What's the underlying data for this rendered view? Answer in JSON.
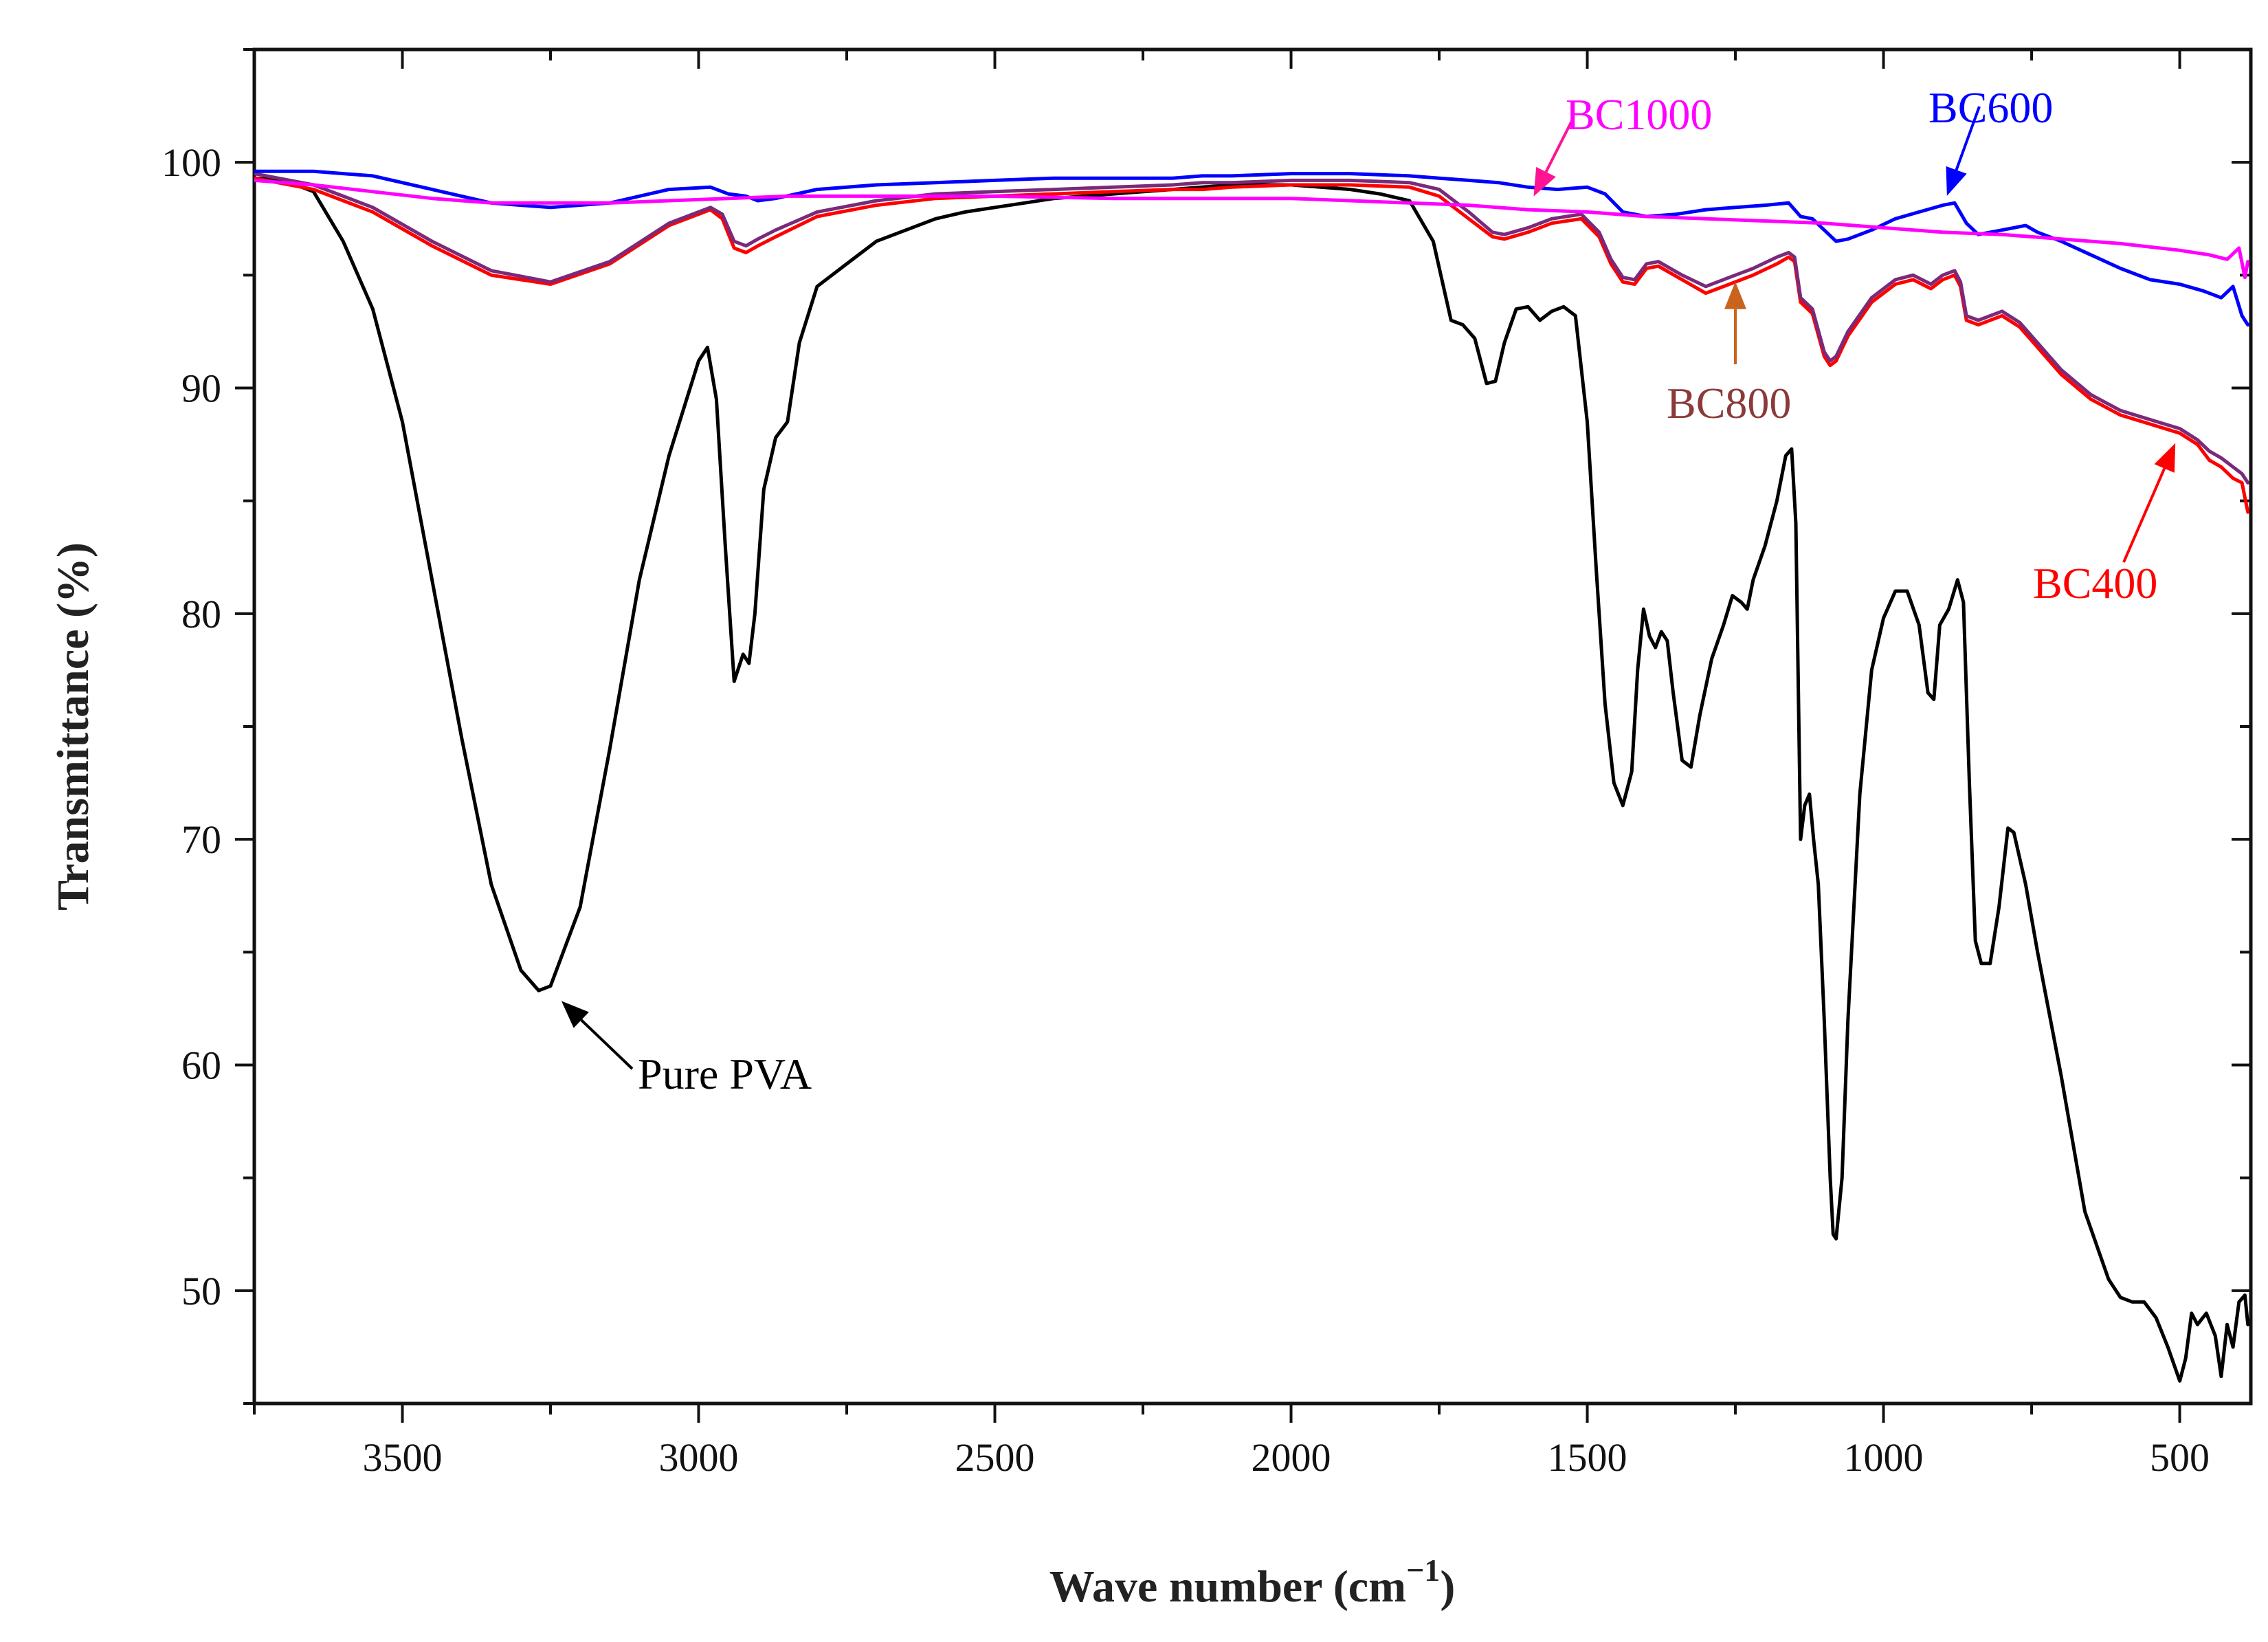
{
  "chart_data": {
    "type": "line",
    "title": "",
    "xlabel": "Wave number (cm",
    "xlabel_superscript": "−1",
    "xlabel_close": ")",
    "ylabel": "Transmittance (%)",
    "xlim": [
      3750,
      380
    ],
    "ylim": [
      45,
      105
    ],
    "x_reversed": true,
    "grid": false,
    "xticks": [
      3500,
      3000,
      2500,
      2000,
      1500,
      1000,
      500
    ],
    "yticks": [
      50,
      60,
      70,
      80,
      90,
      100
    ],
    "series": [
      {
        "name": "Pure PVA",
        "color": "#000000",
        "x": [
          3750,
          3700,
          3650,
          3600,
          3550,
          3500,
          3450,
          3400,
          3350,
          3300,
          3270,
          3250,
          3200,
          3150,
          3100,
          3050,
          3000,
          2985,
          2970,
          2955,
          2940,
          2925,
          2915,
          2905,
          2890,
          2870,
          2850,
          2830,
          2800,
          2750,
          2700,
          2650,
          2600,
          2550,
          2500,
          2450,
          2400,
          2300,
          2200,
          2150,
          2100,
          2050,
          2000,
          1950,
          1900,
          1850,
          1800,
          1760,
          1730,
          1710,
          1690,
          1670,
          1655,
          1640,
          1620,
          1600,
          1580,
          1560,
          1540,
          1520,
          1500,
          1485,
          1470,
          1455,
          1440,
          1425,
          1415,
          1405,
          1395,
          1385,
          1375,
          1365,
          1355,
          1340,
          1325,
          1310,
          1290,
          1270,
          1255,
          1240,
          1230,
          1220,
          1200,
          1180,
          1165,
          1155,
          1148,
          1140,
          1133,
          1125,
          1118,
          1110,
          1100,
          1090,
          1085,
          1080,
          1070,
          1060,
          1040,
          1020,
          1000,
          980,
          960,
          940,
          925,
          915,
          905,
          890,
          875,
          865,
          855,
          845,
          835,
          820,
          805,
          790,
          780,
          760,
          740,
          700,
          660,
          620,
          600,
          580,
          560,
          540,
          520,
          500,
          490,
          480,
          470,
          455,
          440,
          430,
          420,
          410,
          400,
          390,
          385
        ],
        "y": [
          99.3,
          99.2,
          98.7,
          96.5,
          93.5,
          88.5,
          81.5,
          74.5,
          68.0,
          64.2,
          63.3,
          63.5,
          67.0,
          74.0,
          81.5,
          87.0,
          91.2,
          91.8,
          89.5,
          83.0,
          77.0,
          78.2,
          77.8,
          80.0,
          85.5,
          87.8,
          88.5,
          92.0,
          94.5,
          95.5,
          96.5,
          97.0,
          97.5,
          97.8,
          98.0,
          98.2,
          98.4,
          98.6,
          98.8,
          98.9,
          99.0,
          99.0,
          99.0,
          98.9,
          98.8,
          98.6,
          98.3,
          96.5,
          93.0,
          92.8,
          92.2,
          90.2,
          90.3,
          92.0,
          93.5,
          93.6,
          93.0,
          93.4,
          93.6,
          93.2,
          88.5,
          82.0,
          76.0,
          72.5,
          71.5,
          73.0,
          77.5,
          80.2,
          79.0,
          78.5,
          79.2,
          78.8,
          76.5,
          73.5,
          73.2,
          75.5,
          78.0,
          79.5,
          80.8,
          80.5,
          80.2,
          81.5,
          83.0,
          85.0,
          87.0,
          87.3,
          84.0,
          70.0,
          71.5,
          72.0,
          70.0,
          68.0,
          62.0,
          55.0,
          52.5,
          52.3,
          55.0,
          62.0,
          72.0,
          77.5,
          79.8,
          81.0,
          81.0,
          79.5,
          76.5,
          76.2,
          79.5,
          80.2,
          81.5,
          80.5,
          72.5,
          65.5,
          64.5,
          64.5,
          67.0,
          70.5,
          70.3,
          68.0,
          65.0,
          59.5,
          53.5,
          50.5,
          49.7,
          49.5,
          49.5,
          48.8,
          47.5,
          46.0,
          47.0,
          49.0,
          48.5,
          49.0,
          48.0,
          46.2,
          48.5,
          47.5,
          49.5,
          49.8,
          48.5
        ]
      },
      {
        "name": "BC400",
        "color": "#ff0000",
        "x": [
          3750,
          3650,
          3550,
          3450,
          3350,
          3250,
          3150,
          3050,
          2980,
          2960,
          2940,
          2920,
          2900,
          2870,
          2800,
          2700,
          2600,
          2500,
          2400,
          2300,
          2200,
          2150,
          2100,
          2000,
          1900,
          1800,
          1750,
          1700,
          1660,
          1640,
          1600,
          1560,
          1510,
          1480,
          1460,
          1440,
          1420,
          1400,
          1380,
          1340,
          1300,
          1260,
          1220,
          1180,
          1160,
          1150,
          1140,
          1120,
          1100,
          1090,
          1080,
          1060,
          1020,
          980,
          950,
          920,
          900,
          880,
          870,
          860,
          840,
          800,
          770,
          740,
          700,
          650,
          600,
          550,
          500,
          470,
          450,
          430,
          410,
          395,
          385
        ],
        "y": [
          99.3,
          98.8,
          97.8,
          96.3,
          95.0,
          94.6,
          95.5,
          97.2,
          97.9,
          97.5,
          96.2,
          96.0,
          96.3,
          96.7,
          97.6,
          98.1,
          98.4,
          98.5,
          98.6,
          98.7,
          98.8,
          98.8,
          98.9,
          99.0,
          99.0,
          98.9,
          98.5,
          97.5,
          96.7,
          96.6,
          96.9,
          97.3,
          97.5,
          96.7,
          95.5,
          94.7,
          94.6,
          95.3,
          95.4,
          94.8,
          94.2,
          94.6,
          95.0,
          95.5,
          95.8,
          95.6,
          93.8,
          93.3,
          91.4,
          91.0,
          91.2,
          92.3,
          93.8,
          94.6,
          94.8,
          94.4,
          94.8,
          95.0,
          94.5,
          93.0,
          92.8,
          93.2,
          92.7,
          91.8,
          90.6,
          89.5,
          88.8,
          88.4,
          88.0,
          87.5,
          86.8,
          86.5,
          86.0,
          85.8,
          84.5
        ]
      },
      {
        "name": "BC800",
        "color": "#7a2a7a",
        "x": [
          3750,
          3650,
          3550,
          3450,
          3350,
          3250,
          3150,
          3050,
          2980,
          2960,
          2940,
          2920,
          2900,
          2870,
          2800,
          2700,
          2600,
          2500,
          2400,
          2300,
          2200,
          2150,
          2100,
          2000,
          1900,
          1800,
          1750,
          1700,
          1660,
          1640,
          1600,
          1560,
          1510,
          1480,
          1460,
          1440,
          1420,
          1400,
          1380,
          1340,
          1300,
          1260,
          1220,
          1180,
          1160,
          1150,
          1140,
          1120,
          1100,
          1090,
          1080,
          1060,
          1020,
          980,
          950,
          920,
          900,
          880,
          870,
          860,
          840,
          800,
          770,
          740,
          700,
          650,
          600,
          550,
          500,
          470,
          450,
          430,
          410,
          395,
          385
        ],
        "y": [
          99.5,
          99.0,
          98.0,
          96.5,
          95.2,
          94.7,
          95.6,
          97.3,
          98.0,
          97.7,
          96.5,
          96.3,
          96.6,
          97.0,
          97.8,
          98.3,
          98.6,
          98.7,
          98.8,
          98.9,
          99.0,
          99.1,
          99.1,
          99.2,
          99.2,
          99.1,
          98.8,
          97.8,
          96.9,
          96.8,
          97.1,
          97.5,
          97.7,
          96.9,
          95.7,
          94.9,
          94.8,
          95.5,
          95.6,
          95.0,
          94.5,
          94.9,
          95.3,
          95.8,
          96.0,
          95.8,
          94.0,
          93.5,
          91.6,
          91.2,
          91.4,
          92.5,
          94.0,
          94.8,
          95.0,
          94.6,
          95.0,
          95.2,
          94.7,
          93.2,
          93.0,
          93.4,
          92.9,
          92.0,
          90.8,
          89.7,
          89.0,
          88.6,
          88.2,
          87.7,
          87.2,
          86.9,
          86.5,
          86.2,
          85.8
        ]
      },
      {
        "name": "BC600",
        "color": "#0000ff",
        "x": [
          3750,
          3650,
          3550,
          3450,
          3350,
          3250,
          3150,
          3050,
          2980,
          2950,
          2920,
          2900,
          2870,
          2800,
          2700,
          2600,
          2500,
          2400,
          2300,
          2200,
          2150,
          2100,
          2000,
          1900,
          1800,
          1750,
          1700,
          1650,
          1600,
          1550,
          1500,
          1470,
          1440,
          1400,
          1350,
          1300,
          1250,
          1200,
          1160,
          1140,
          1120,
          1100,
          1080,
          1060,
          1020,
          980,
          940,
          900,
          880,
          860,
          840,
          800,
          760,
          740,
          700,
          650,
          600,
          550,
          500,
          460,
          430,
          410,
          395,
          385
        ],
        "y": [
          99.6,
          99.6,
          99.4,
          98.8,
          98.2,
          98.0,
          98.2,
          98.8,
          98.9,
          98.6,
          98.5,
          98.3,
          98.4,
          98.8,
          99.0,
          99.1,
          99.2,
          99.3,
          99.3,
          99.3,
          99.4,
          99.4,
          99.5,
          99.5,
          99.4,
          99.3,
          99.2,
          99.1,
          98.9,
          98.8,
          98.9,
          98.6,
          97.8,
          97.6,
          97.7,
          97.9,
          98.0,
          98.1,
          98.2,
          97.6,
          97.5,
          97.0,
          96.5,
          96.6,
          97.0,
          97.5,
          97.8,
          98.1,
          98.2,
          97.3,
          96.8,
          97.0,
          97.2,
          96.9,
          96.5,
          95.9,
          95.3,
          94.8,
          94.6,
          94.3,
          94.0,
          94.5,
          93.2,
          92.8
        ]
      },
      {
        "name": "BC1000",
        "color": "#ff00ff",
        "x": [
          3750,
          3650,
          3550,
          3450,
          3350,
          3250,
          3150,
          3050,
          2950,
          2850,
          2700,
          2500,
          2300,
          2200,
          2100,
          2000,
          1900,
          1800,
          1700,
          1600,
          1500,
          1400,
          1300,
          1200,
          1100,
          1000,
          900,
          800,
          700,
          600,
          500,
          450,
          420,
          400,
          390,
          385
        ],
        "y": [
          99.2,
          99.0,
          98.7,
          98.4,
          98.2,
          98.2,
          98.2,
          98.3,
          98.4,
          98.5,
          98.5,
          98.5,
          98.4,
          98.4,
          98.4,
          98.4,
          98.3,
          98.2,
          98.1,
          97.9,
          97.8,
          97.6,
          97.5,
          97.4,
          97.3,
          97.1,
          96.9,
          96.8,
          96.6,
          96.4,
          96.1,
          95.9,
          95.7,
          96.2,
          94.9,
          95.6
        ]
      }
    ],
    "annotations": [
      {
        "text": "Pure PVA",
        "color": "#000000",
        "points_to_series": "Pure PVA",
        "points_to": [
          3250,
          63.3
        ]
      },
      {
        "text": "BC1000",
        "color": "#ff00ff",
        "arrow_color": "#ff1493",
        "points_to_series": "BC1000",
        "points_to": [
          1600,
          98.0
        ]
      },
      {
        "text": "BC600",
        "color": "#0000ff",
        "points_to_series": "BC600",
        "points_to": [
          900,
          98.0
        ]
      },
      {
        "text": "BC800",
        "color": "#8b3a3a",
        "arrow_color": "#c8641e",
        "points_to_series": "BC800",
        "points_to": [
          1250,
          95.2
        ]
      },
      {
        "text": "BC400",
        "color": "#ff0000",
        "points_to_series": "BC400",
        "points_to": [
          500,
          88.0
        ]
      }
    ]
  }
}
